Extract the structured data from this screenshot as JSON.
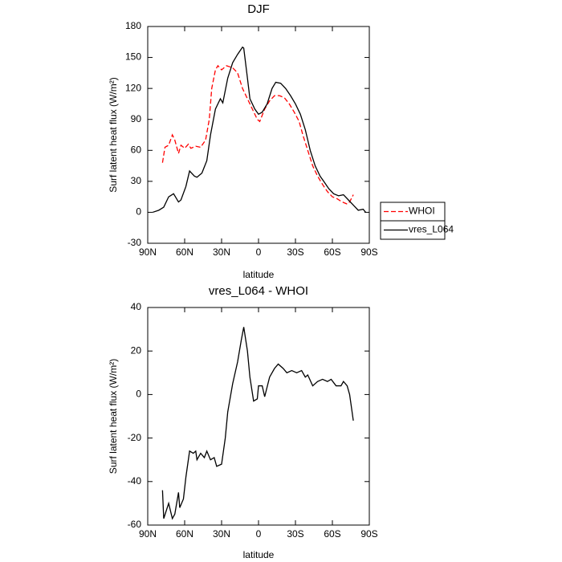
{
  "chart_data": [
    {
      "type": "line",
      "title": "DJF",
      "xlabel": "latitude",
      "ylabel": "Surf latent heat flux (W/m²)",
      "xlim": [
        90,
        -90
      ],
      "xticks": [
        {
          "value": 90,
          "label": "90N"
        },
        {
          "value": 60,
          "label": "60N"
        },
        {
          "value": 30,
          "label": "30N"
        },
        0,
        {
          "value": -30,
          "label": "30S"
        },
        {
          "value": -60,
          "label": "60S"
        },
        {
          "value": -90,
          "label": "90S"
        }
      ],
      "ylim": [
        -30,
        180
      ],
      "yticks": [
        -30,
        0,
        30,
        60,
        90,
        120,
        150,
        180
      ],
      "legend": "right",
      "series": [
        {
          "name": "WHOI",
          "color": "#ff0000",
          "style": "dashed",
          "x": [
            78,
            76,
            73,
            70,
            68,
            65,
            63,
            60,
            57,
            55,
            51,
            47,
            43,
            40,
            38,
            35,
            33,
            30,
            26,
            21,
            17,
            13,
            9,
            5,
            1,
            -1,
            -5,
            -9,
            -13,
            -17,
            -21,
            -25,
            -29,
            -33,
            -36,
            -40,
            -44,
            -48,
            -52,
            -56,
            -60,
            -64,
            -68,
            -72,
            -74,
            -77
          ],
          "values": [
            48,
            63,
            65,
            75,
            70,
            57,
            65,
            62,
            66,
            62,
            64,
            63,
            70,
            90,
            120,
            138,
            142,
            138,
            142,
            140,
            135,
            120,
            110,
            100,
            90,
            88,
            100,
            108,
            113,
            113,
            111,
            105,
            97,
            88,
            75,
            60,
            45,
            35,
            27,
            20,
            15,
            13,
            10,
            8,
            10,
            17
          ]
        },
        {
          "name": "vres_L064",
          "color": "#000000",
          "style": "solid",
          "x": [
            86,
            81,
            77,
            73,
            69,
            65,
            63,
            59,
            56,
            52,
            50,
            46,
            42,
            39,
            35,
            31,
            29,
            25,
            21,
            17,
            13,
            12,
            9,
            7,
            3,
            0,
            -3,
            -7,
            -11,
            -14,
            -18,
            -22,
            -26,
            -30,
            -34,
            -38,
            -42,
            -46,
            -50,
            -53,
            -57,
            -61,
            -65,
            -69,
            -73,
            -77,
            -81,
            -85,
            -87
          ],
          "values": [
            0,
            2,
            5,
            15,
            18,
            10,
            12,
            25,
            40,
            35,
            34,
            38,
            50,
            75,
            100,
            110,
            106,
            130,
            145,
            153,
            160,
            159,
            130,
            110,
            100,
            95,
            97,
            105,
            120,
            126,
            125,
            120,
            113,
            105,
            95,
            80,
            60,
            45,
            35,
            30,
            23,
            18,
            16,
            17,
            12,
            7,
            2,
            3,
            0
          ]
        }
      ]
    },
    {
      "type": "line",
      "title": "vres_L064 - WHOI",
      "xlabel": "latitude",
      "ylabel": "Surf latent heat flux (W/m²)",
      "xlim": [
        90,
        -90
      ],
      "xticks": [
        {
          "value": 90,
          "label": "90N"
        },
        {
          "value": 60,
          "label": "60N"
        },
        {
          "value": 30,
          "label": "30N"
        },
        0,
        {
          "value": -30,
          "label": "30S"
        },
        {
          "value": -60,
          "label": "60S"
        },
        {
          "value": -90,
          "label": "90S"
        }
      ],
      "ylim": [
        -60,
        40
      ],
      "yticks": [
        -60,
        -40,
        -20,
        0,
        20,
        40
      ],
      "color": "#000000",
      "x": [
        78,
        77,
        73,
        70,
        68,
        65,
        64,
        61,
        59,
        56,
        53,
        51,
        50,
        47,
        44,
        42,
        39,
        36,
        34,
        30,
        27,
        25,
        21,
        17,
        14,
        12,
        9,
        7,
        4,
        1,
        0,
        -3,
        -5,
        -9,
        -13,
        -16,
        -20,
        -23,
        -27,
        -31,
        -35,
        -38,
        -40,
        -44,
        -48,
        -52,
        -56,
        -59,
        -63,
        -67,
        -69,
        -72,
        -74,
        -77
      ],
      "values": [
        -44,
        -57,
        -50,
        -57,
        -55,
        -45,
        -52,
        -48,
        -38,
        -26,
        -27,
        -26,
        -30,
        -27,
        -29,
        -26,
        -30,
        -29,
        -33,
        -32,
        -20,
        -8,
        5,
        15,
        25,
        31,
        20,
        8,
        -3,
        -2,
        4,
        4,
        -1,
        8,
        12,
        14,
        12,
        10,
        11,
        10,
        11,
        8,
        9,
        4,
        6,
        7,
        6,
        7,
        4,
        4,
        6,
        4,
        0,
        -12
      ]
    }
  ]
}
